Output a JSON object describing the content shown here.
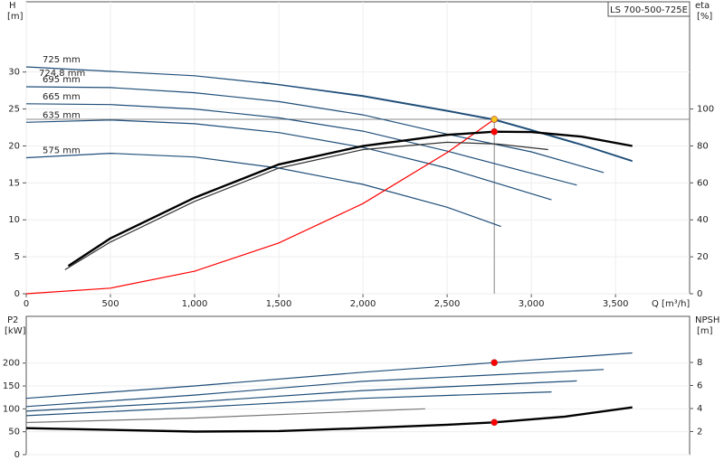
{
  "chart_data": [
    {
      "type": "line",
      "y_label": "H",
      "y_unit": "[m]",
      "y2_label": "eta",
      "y2_unit": "[%]",
      "x_label": "Q [m³/h]",
      "legend_title": "LS 700-500-725E",
      "xlim": [
        0,
        3940
      ],
      "xticks": [
        0,
        500,
        {
          "value": 1000,
          "label": "1,000"
        },
        {
          "value": 1500,
          "label": "1,500"
        },
        {
          "value": 2000,
          "label": "2,000"
        },
        {
          "value": 2500,
          "label": "2,500"
        },
        {
          "value": 3000,
          "label": "3,000"
        },
        {
          "value": 3500,
          "label": "3,500"
        }
      ],
      "ylim": [
        0,
        39.5
      ],
      "yticks": [
        0,
        5,
        10,
        15,
        20,
        25,
        30
      ],
      "y2lim": [
        0,
        158
      ],
      "y2ticks": [
        0,
        20,
        40,
        60,
        80,
        100
      ],
      "grid": true,
      "guides": true,
      "series": [
        {
          "name": "725 mm",
          "color": "#1f4e79",
          "x": [
            0,
            1000,
            1500,
            2000,
            2500,
            2780,
            3000,
            3300,
            3600
          ],
          "values": [
            30.7,
            29.5,
            28.3,
            26.8,
            24.8,
            23.6,
            22.2,
            20.2,
            18
          ]
        },
        {
          "name": "724.8 mm",
          "color": "#1f4e79",
          "x": [
            1400,
            2000,
            2500,
            2780,
            3000,
            3300,
            3600
          ],
          "values": [
            28.6,
            26.7,
            24.7,
            23.5,
            22.1,
            20.1,
            17.9
          ]
        },
        {
          "name": "695 mm",
          "color": "#1f4e79",
          "x": [
            0,
            500,
            1000,
            1500,
            2000,
            2500,
            3000,
            3430
          ],
          "values": [
            28,
            27.9,
            27.2,
            26,
            24.2,
            21.6,
            19.2,
            16.4
          ]
        },
        {
          "name": "665 mm",
          "color": "#1f4e79",
          "x": [
            0,
            500,
            1000,
            1500,
            2000,
            2500,
            3000,
            3270
          ],
          "values": [
            25.7,
            25.6,
            25,
            23.8,
            22,
            19.3,
            16.3,
            14.7
          ]
        },
        {
          "name": "635 mm",
          "color": "#1f4e79",
          "x": [
            0,
            500,
            1000,
            1500,
            2000,
            2500,
            3120
          ],
          "values": [
            23.2,
            23.5,
            23,
            21.8,
            19.8,
            17,
            12.7
          ]
        },
        {
          "name": "575 mm",
          "color": "#1f4e79",
          "x": [
            0,
            500,
            1000,
            1500,
            2000,
            2500,
            2820
          ],
          "values": [
            18.4,
            19,
            18.5,
            17,
            14.8,
            11.7,
            9.1
          ]
        },
        {
          "color": "#ff0000",
          "x": [
            0,
            500,
            1000,
            1500,
            2000,
            2500,
            2780
          ],
          "values": [
            0,
            0.76,
            3.05,
            6.87,
            12.2,
            19.1,
            23.6
          ]
        },
        {
          "color": "#000000",
          "axis": "y2",
          "x": [
            250,
            500,
            1000,
            1500,
            2000,
            2500,
            2780,
            3000,
            3300,
            3600
          ],
          "values": [
            15,
            30,
            52,
            70,
            80,
            86,
            87.7,
            87.5,
            85,
            80
          ]
        },
        {
          "color": "#333333",
          "axis": "y2",
          "x": [
            230,
            500,
            1000,
            1500,
            2000,
            2500,
            2800,
            3100
          ],
          "values": [
            13,
            28,
            50,
            68,
            78,
            82,
            81,
            78
          ]
        }
      ],
      "points": [
        {
          "x": 2780,
          "y": 23.6,
          "color": "#f5c518"
        },
        {
          "x": 2780,
          "y": 87.7,
          "axis": "y2",
          "color": "#ff0000"
        }
      ]
    },
    {
      "type": "line",
      "y_label": "P2",
      "y_unit": "[kW]",
      "y2_label": "NPSH",
      "y2_unit": "[m]",
      "xlim": [
        0,
        3940
      ],
      "ylim": [
        0,
        302
      ],
      "yticks": [
        0,
        50,
        100,
        150,
        200
      ],
      "y2lim": [
        0,
        12
      ],
      "y2ticks": [
        2,
        4,
        6,
        8
      ],
      "grid": true,
      "series": [
        {
          "color": "#1f4e79",
          "x": [
            0,
            1000,
            2000,
            2780,
            3600
          ],
          "values": [
            123,
            150,
            180,
            201,
            222
          ]
        },
        {
          "color": "#1f4e79",
          "x": [
            0,
            1000,
            2000,
            3430
          ],
          "values": [
            105,
            130,
            160,
            186
          ]
        },
        {
          "color": "#1f4e79",
          "x": [
            0,
            1000,
            2000,
            3270
          ],
          "values": [
            95,
            115,
            140,
            161
          ]
        },
        {
          "color": "#1f4e79",
          "x": [
            0,
            1000,
            2000,
            3120
          ],
          "values": [
            85,
            103,
            123,
            137
          ]
        },
        {
          "color": "#777777",
          "x": [
            0,
            1000,
            2000,
            2370
          ],
          "values": [
            70,
            80,
            95,
            100
          ]
        },
        {
          "color": "#000000",
          "axis": "y2",
          "x": [
            0,
            500,
            1000,
            1500,
            2000,
            2500,
            2780,
            3200,
            3600
          ],
          "values": [
            2.3,
            2.15,
            2.0,
            2.05,
            2.3,
            2.6,
            2.8,
            3.3,
            4.1
          ]
        }
      ],
      "points": [
        {
          "x": 2780,
          "y": 201,
          "color": "#ff0000"
        },
        {
          "x": 2780,
          "y": 2.8,
          "axis": "y2",
          "color": "#ff0000"
        }
      ]
    }
  ]
}
